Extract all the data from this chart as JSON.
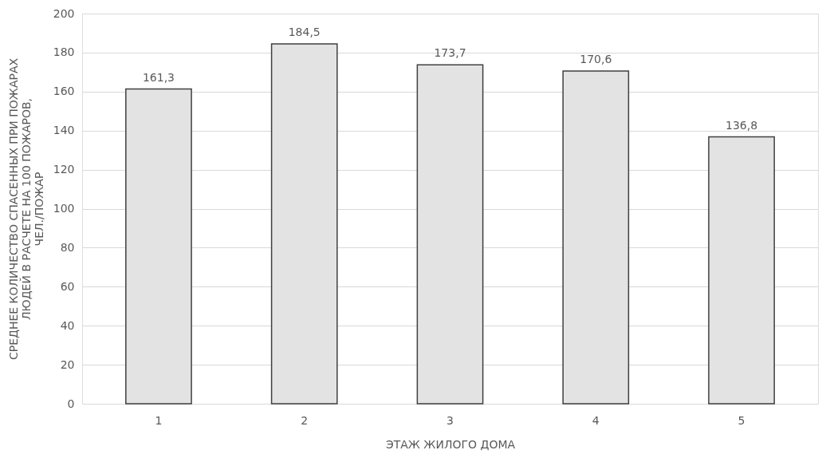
{
  "chart_data": {
    "type": "bar",
    "xlabel": "ЭТАЖ ЖИЛОГО ДОМА",
    "ylabel": "СРЕДНЕЕ КОЛИЧЕСТВО СПАСЕННЫХ ПРИ ПОЖАРАХ ЛЮДЕЙ В РАСЧЕТЕ НА 100 ПОЖАРОВ, ЧЕЛ./ПОЖАР",
    "categories": [
      "1",
      "2",
      "3",
      "4",
      "5"
    ],
    "values": [
      161.3,
      184.5,
      173.7,
      170.6,
      136.8
    ],
    "value_labels": [
      "161,3",
      "184,5",
      "173,7",
      "170,6",
      "136,8"
    ],
    "color": "#e3e3e3",
    "ylim": [
      0,
      200
    ],
    "yticks": [
      0,
      20,
      40,
      60,
      80,
      100,
      120,
      140,
      160,
      180,
      200
    ],
    "grid": "y"
  }
}
